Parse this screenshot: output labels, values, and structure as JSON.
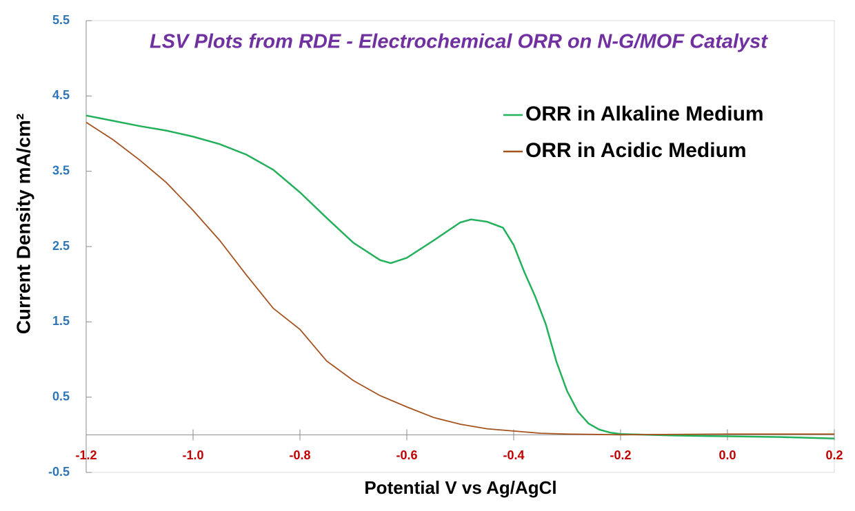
{
  "chart_data": {
    "type": "line",
    "title": "LSV Plots from RDE - Electrochemical ORR on N-G/MOF Catalyst",
    "x_label": "Potential V vs Ag/AgCl",
    "y_label": "Current Density mA/cm²",
    "xlim": [
      -1.2,
      0.2
    ],
    "xticks": [
      -1.2,
      {
        "value": -1,
        "label": "-1.0"
      },
      -0.8,
      -0.6,
      -0.4,
      -0.2,
      {
        "value": 0,
        "label": "0.0"
      },
      0.2
    ],
    "ylim": [
      -0.5,
      5.5
    ],
    "yticks": [
      -0.5,
      0.5,
      1.5,
      2.5,
      3.5,
      4.5,
      5.5
    ],
    "legend": "upper right",
    "series": [
      {
        "name": "ORR in Alkaline Medium",
        "color": "#22b05a",
        "x": [
          -1.2,
          -1.15,
          -1.1,
          -1.05,
          -1.0,
          -0.95,
          -0.9,
          -0.85,
          -0.8,
          -0.75,
          -0.7,
          -0.65,
          -0.63,
          -0.6,
          -0.55,
          -0.5,
          -0.48,
          -0.45,
          -0.42,
          -0.4,
          -0.38,
          -0.36,
          -0.34,
          -0.32,
          -0.3,
          -0.28,
          -0.26,
          -0.24,
          -0.22,
          -0.2,
          -0.1,
          0.0,
          0.1,
          0.2
        ],
        "values": [
          4.24,
          4.17,
          4.1,
          4.04,
          3.96,
          3.86,
          3.72,
          3.52,
          3.22,
          2.88,
          2.55,
          2.32,
          2.28,
          2.35,
          2.58,
          2.82,
          2.86,
          2.83,
          2.75,
          2.52,
          2.16,
          1.84,
          1.47,
          0.97,
          0.58,
          0.31,
          0.15,
          0.07,
          0.03,
          0.01,
          -0.01,
          -0.02,
          -0.03,
          -0.05
        ]
      },
      {
        "name": "ORR in Acidic Medium",
        "color": "#a5521f",
        "x": [
          -1.2,
          -1.15,
          -1.1,
          -1.05,
          -1.0,
          -0.95,
          -0.9,
          -0.85,
          -0.8,
          -0.75,
          -0.7,
          -0.65,
          -0.6,
          -0.55,
          -0.5,
          -0.45,
          -0.4,
          -0.35,
          -0.3,
          -0.2,
          0.0,
          0.2
        ],
        "values": [
          4.15,
          3.92,
          3.65,
          3.35,
          2.98,
          2.58,
          2.12,
          1.68,
          1.4,
          0.98,
          0.72,
          0.52,
          0.37,
          0.23,
          0.14,
          0.08,
          0.05,
          0.02,
          0.01,
          0.0,
          0.01,
          0.01
        ]
      }
    ]
  }
}
